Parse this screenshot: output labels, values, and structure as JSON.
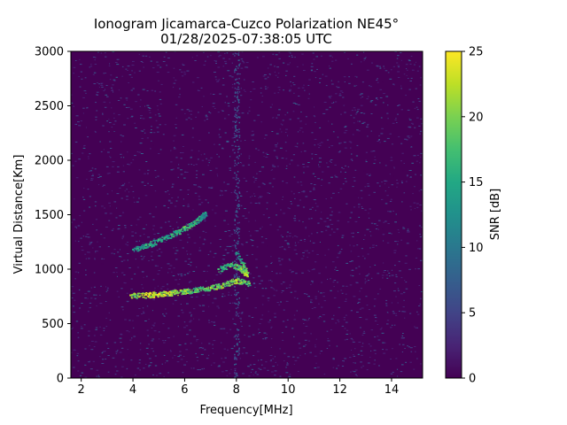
{
  "chart_data": {
    "type": "heatmap",
    "title": "Ionogram Jicamarca-Cuzco Polarization NE45°",
    "subtitle": "01/28/2025-07:38:05 UTC",
    "xlabel": "Frequency[MHz]",
    "ylabel": "Virtual Distance[Km]",
    "xlim": [
      1.6,
      15.2
    ],
    "ylim": [
      0,
      3000
    ],
    "x_ticks": [
      2,
      4,
      6,
      8,
      10,
      12,
      14
    ],
    "y_ticks": [
      0,
      500,
      1000,
      1500,
      2000,
      2500,
      3000
    ],
    "colorbar": {
      "label": "SNR [dB]",
      "range": [
        0,
        25
      ],
      "ticks": [
        0,
        5,
        10,
        15,
        20,
        25
      ],
      "colormap": "viridis"
    },
    "grid": false,
    "background_snr_db": 0,
    "interference_band": {
      "frequency_mhz": 8.0,
      "snr_db": 5
    },
    "traces": [
      {
        "points": [
          {
            "x": 3.9,
            "y": 760,
            "snr": 22
          },
          {
            "x": 4.5,
            "y": 765,
            "snr": 25
          },
          {
            "x": 5.0,
            "y": 775,
            "snr": 25
          },
          {
            "x": 5.5,
            "y": 785,
            "snr": 24
          },
          {
            "x": 6.0,
            "y": 800,
            "snr": 22
          },
          {
            "x": 6.5,
            "y": 815,
            "snr": 20
          },
          {
            "x": 7.0,
            "y": 830,
            "snr": 22
          },
          {
            "x": 7.5,
            "y": 860,
            "snr": 23
          },
          {
            "x": 8.0,
            "y": 900,
            "snr": 24
          },
          {
            "x": 8.5,
            "y": 870,
            "snr": 20
          }
        ]
      },
      {
        "points": [
          {
            "x": 7.3,
            "y": 1000,
            "snr": 18
          },
          {
            "x": 7.8,
            "y": 1050,
            "snr": 20
          },
          {
            "x": 8.2,
            "y": 1000,
            "snr": 22
          },
          {
            "x": 8.4,
            "y": 950,
            "snr": 24
          },
          {
            "x": 8.0,
            "y": 1150,
            "snr": 15
          }
        ]
      },
      {
        "points": [
          {
            "x": 4.0,
            "y": 1180,
            "snr": 16
          },
          {
            "x": 4.5,
            "y": 1220,
            "snr": 18
          },
          {
            "x": 5.0,
            "y": 1270,
            "snr": 18
          },
          {
            "x": 5.5,
            "y": 1320,
            "snr": 18
          },
          {
            "x": 6.0,
            "y": 1380,
            "snr": 20
          },
          {
            "x": 6.5,
            "y": 1450,
            "snr": 18
          },
          {
            "x": 6.8,
            "y": 1520,
            "snr": 14
          }
        ]
      }
    ]
  }
}
